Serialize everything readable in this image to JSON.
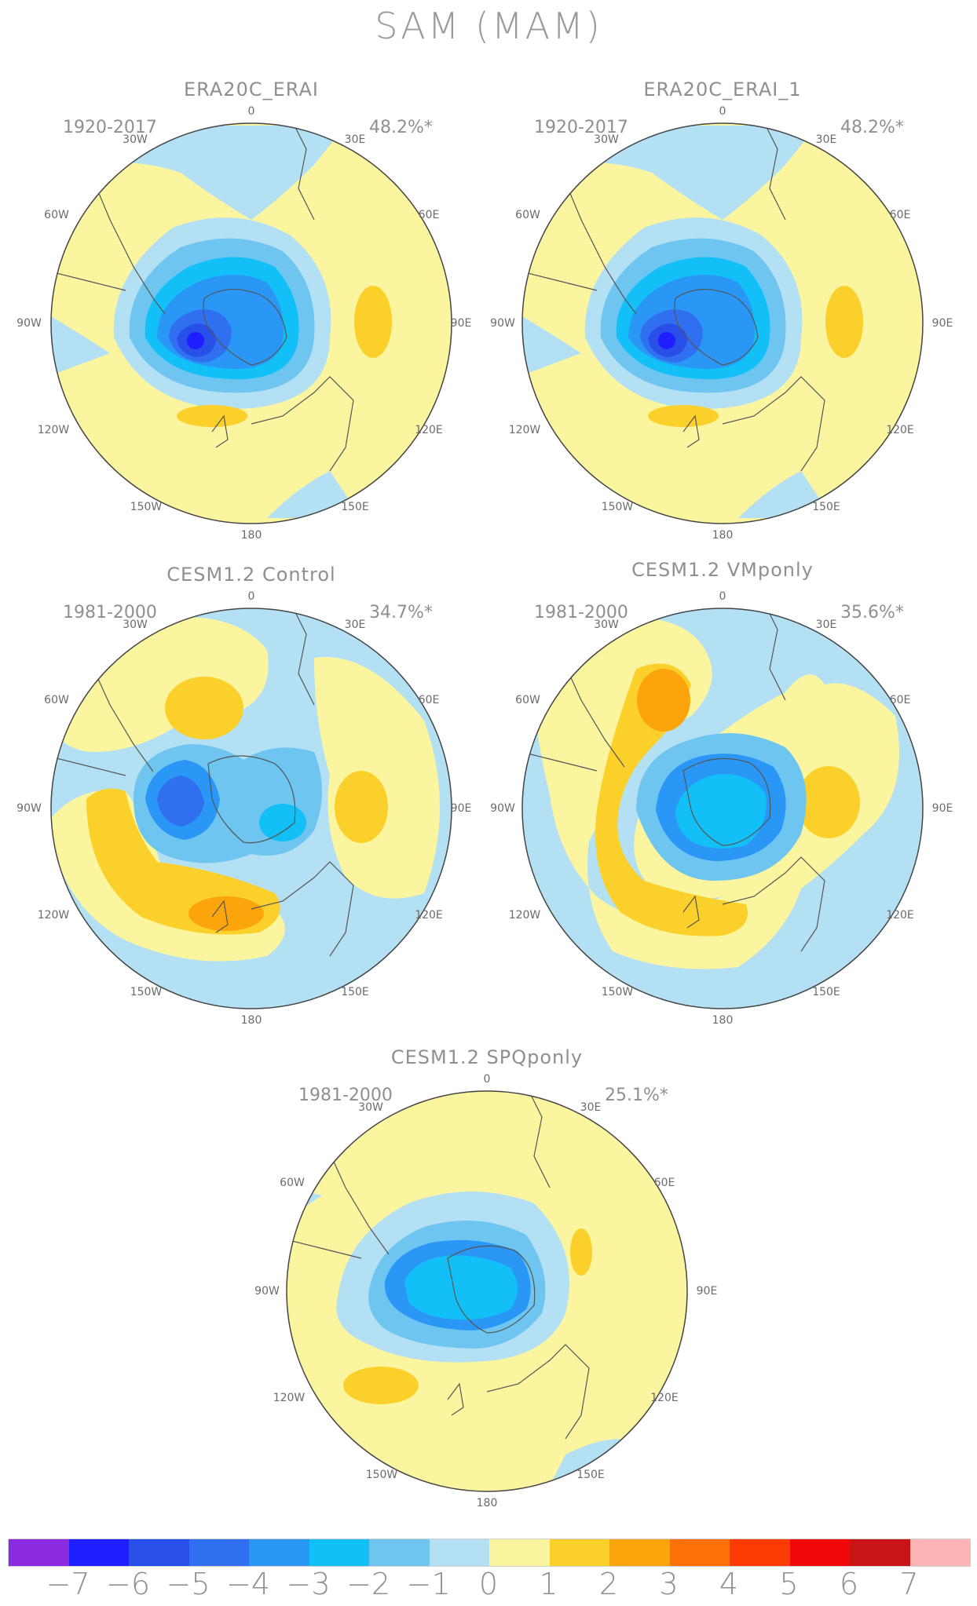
{
  "main_title": "SAM (MAM)",
  "longitude_labels": [
    "0",
    "30E",
    "60E",
    "90E",
    "120E",
    "150E",
    "180",
    "150W",
    "120W",
    "90W",
    "60W",
    "30W"
  ],
  "panels": [
    {
      "title": "ERA20C_ERAI",
      "period": "1920-2017",
      "variance": "48.2%*"
    },
    {
      "title": "ERA20C_ERAI_1",
      "period": "1920-2017",
      "variance": "48.2%*"
    },
    {
      "title": "CESM1.2 Control",
      "period": "1981-2000",
      "variance": "34.7%*"
    },
    {
      "title": "CESM1.2 VMponly",
      "period": "1981-2000",
      "variance": "35.6%*"
    },
    {
      "title": "CESM1.2 SPQponly",
      "period": "1981-2000",
      "variance": "25.1%*"
    }
  ],
  "colorbar": {
    "colors": [
      "#8a2be2",
      "#1e1eff",
      "#2850e8",
      "#3070f0",
      "#2a96f5",
      "#12c0f7",
      "#6ec6f0",
      "#b4e0f3",
      "#fcf5a0",
      "#fcd02a",
      "#fca40c",
      "#fc7008",
      "#fc3a04",
      "#f00808",
      "#c81414",
      "#fcb4b4"
    ],
    "ticks": [
      "-7",
      "-6",
      "-5",
      "-4",
      "-3",
      "-2",
      "-1",
      "0",
      "1",
      "2",
      "3",
      "4",
      "5",
      "6",
      "7"
    ]
  }
}
